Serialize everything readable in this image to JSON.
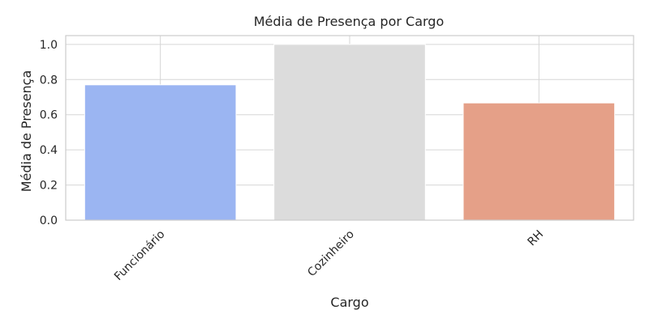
{
  "chart_data": {
    "type": "bar",
    "title": "Média de Presença por Cargo",
    "xlabel": "Cargo",
    "ylabel": "Média de Presença",
    "categories": [
      "Funcionário",
      "Cozinheiro",
      "RH"
    ],
    "values": [
      0.77,
      1.0,
      0.667
    ],
    "colors": [
      "#9bb5f2",
      "#dcdcdc",
      "#e5a088"
    ],
    "ylim": [
      0,
      1.05
    ],
    "yticks": [
      "0.0",
      "0.2",
      "0.4",
      "0.6",
      "0.8",
      "1.0"
    ],
    "ytick_values": [
      0,
      0.2,
      0.4,
      0.6,
      0.8,
      1.0
    ],
    "grid": true,
    "background": "#ffffff",
    "grid_color": "#d6d6d6",
    "spine_color": "#cccccc"
  }
}
